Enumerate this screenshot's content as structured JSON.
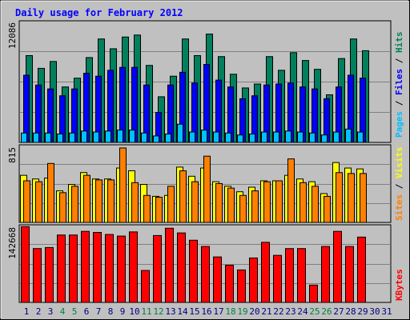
{
  "colors": {
    "background": "#c0c0c0",
    "panel": "#c0c0c0",
    "title": "#0000ff",
    "hits": "#00805c",
    "files": "#0000ff",
    "pages": "#00c0ff",
    "visits": "#ffff00",
    "sites": "#ff8000",
    "kbytes": "#ff0000",
    "weekday_label": "#000080",
    "weekend_label": "#008040"
  },
  "chart_data": [
    {
      "type": "bar",
      "title": "Daily usage for February 2012",
      "panel": "hits-files-pages",
      "ymax_label": "12086",
      "ylim": [
        0,
        12086
      ],
      "categories": [
        "1",
        "2",
        "3",
        "4",
        "5",
        "6",
        "7",
        "8",
        "9",
        "10",
        "11",
        "12",
        "13",
        "14",
        "15",
        "16",
        "17",
        "18",
        "19",
        "20",
        "21",
        "22",
        "23",
        "24",
        "25",
        "26",
        "27",
        "28",
        "29",
        "30",
        "31"
      ],
      "weekend_days": [
        "4",
        "5",
        "11",
        "12",
        "18",
        "19",
        "25",
        "26"
      ],
      "series": [
        {
          "name": "Hits",
          "values": [
            8900,
            7600,
            8300,
            5700,
            6600,
            8700,
            10600,
            9600,
            10800,
            11000,
            7900,
            4700,
            6800,
            10600,
            8900,
            11100,
            8800,
            7000,
            5600,
            6000,
            8800,
            7400,
            9200,
            8400,
            7500,
            4900,
            8600,
            10600,
            9400,
            0,
            0
          ]
        },
        {
          "name": "Files",
          "values": [
            6900,
            5900,
            5500,
            4800,
            5500,
            7100,
            6800,
            7400,
            7700,
            7700,
            5900,
            3100,
            5900,
            7200,
            6100,
            8000,
            6400,
            5700,
            4500,
            4800,
            5900,
            6000,
            6100,
            5700,
            5500,
            4500,
            5700,
            6900,
            6600,
            0,
            0
          ]
        },
        {
          "name": "Pages",
          "values": [
            1000,
            1000,
            1000,
            900,
            1000,
            1200,
            1100,
            1200,
            1300,
            1300,
            1000,
            700,
            900,
            1900,
            1100,
            1300,
            1100,
            1000,
            800,
            900,
            1100,
            1100,
            1200,
            1100,
            1000,
            800,
            1100,
            1400,
            1100,
            0,
            0
          ]
        }
      ]
    },
    {
      "type": "bar",
      "panel": "visits-sites",
      "ymax_label": "815",
      "ylim": [
        0,
        815
      ],
      "categories": [
        "1",
        "2",
        "3",
        "4",
        "5",
        "6",
        "7",
        "8",
        "9",
        "10",
        "11",
        "12",
        "13",
        "14",
        "15",
        "16",
        "17",
        "18",
        "19",
        "20",
        "21",
        "22",
        "23",
        "24",
        "25",
        "26",
        "27",
        "28",
        "29",
        "30",
        "31"
      ],
      "series": [
        {
          "name": "Visits",
          "values": [
            520,
            480,
            490,
            350,
            420,
            550,
            480,
            480,
            600,
            570,
            420,
            290,
            300,
            610,
            510,
            600,
            450,
            400,
            340,
            390,
            460,
            460,
            520,
            480,
            450,
            320,
            660,
            600,
            590,
            0,
            0
          ]
        },
        {
          "name": "Sites",
          "values": [
            460,
            450,
            650,
            330,
            400,
            520,
            470,
            470,
            820,
            440,
            300,
            280,
            400,
            570,
            450,
            730,
            430,
            380,
            300,
            350,
            450,
            460,
            700,
            440,
            400,
            290,
            550,
            540,
            540,
            0,
            0
          ]
        }
      ]
    },
    {
      "type": "bar",
      "panel": "kbytes",
      "ymax_label": "142668",
      "ylim": [
        0,
        142668
      ],
      "categories": [
        "1",
        "2",
        "3",
        "4",
        "5",
        "6",
        "7",
        "8",
        "9",
        "10",
        "11",
        "12",
        "13",
        "14",
        "15",
        "16",
        "17",
        "18",
        "19",
        "20",
        "21",
        "22",
        "23",
        "24",
        "25",
        "26",
        "27",
        "28",
        "29",
        "30",
        "31"
      ],
      "series": [
        {
          "name": "KBytes",
          "values": [
            146000,
            104000,
            106000,
            130000,
            130000,
            137000,
            135000,
            131000,
            128000,
            136000,
            62000,
            129000,
            143000,
            134000,
            120000,
            108000,
            88000,
            72000,
            63000,
            86000,
            116000,
            91000,
            104000,
            104000,
            34000,
            108000,
            137000,
            108000,
            126000,
            0,
            0
          ]
        }
      ]
    }
  ],
  "side_labels": {
    "pages": "Pages",
    "files": "Files",
    "hits": "Hits",
    "visits": "Visits",
    "sites": "Sites",
    "kbytes": "KBytes",
    "separator": " / "
  }
}
